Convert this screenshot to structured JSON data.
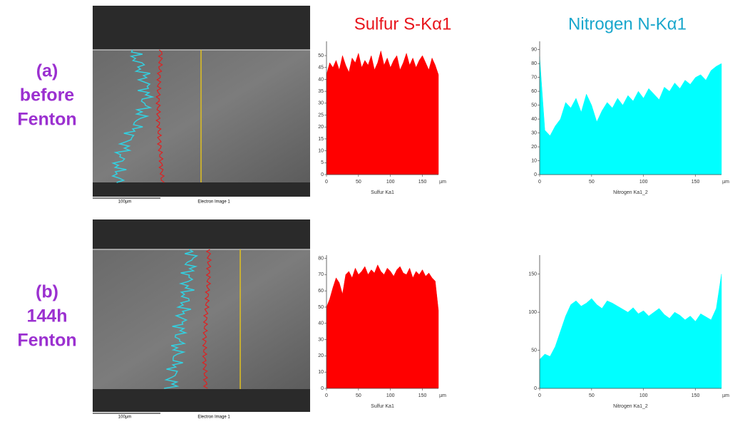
{
  "row_labels": [
    [
      "(a)",
      "before",
      "Fenton"
    ],
    [
      "(b)",
      "144h",
      "Fenton"
    ]
  ],
  "column_titles": [
    {
      "text": "Sulfur S-Kα1",
      "color": "#e8141c"
    },
    {
      "text": "Nitrogen N-Kα1",
      "color": "#1aa7cc"
    }
  ],
  "images": [
    {
      "scale_bar": "100µm",
      "caption": "Electron Image 1"
    },
    {
      "scale_bar": "100µm",
      "caption": "Electron Image 1"
    }
  ],
  "chart_data": [
    {
      "type": "area",
      "x": [
        0,
        5,
        10,
        15,
        20,
        25,
        30,
        35,
        40,
        45,
        50,
        55,
        60,
        65,
        70,
        75,
        80,
        85,
        90,
        95,
        100,
        105,
        110,
        115,
        120,
        125,
        130,
        135,
        140,
        145,
        150,
        155,
        160,
        165,
        170,
        175
      ],
      "series": [
        {
          "name": "Sulfur Ka1",
          "color": "#ff0000",
          "values": [
            42,
            47,
            45,
            48,
            44,
            50,
            46,
            43,
            49,
            47,
            51,
            45,
            48,
            46,
            50,
            44,
            47,
            52,
            46,
            49,
            45,
            48,
            50,
            44,
            47,
            51,
            46,
            49,
            45,
            48,
            50,
            47,
            44,
            49,
            46,
            42
          ]
        }
      ],
      "xlim": [
        0,
        175
      ],
      "xticks": [
        0,
        50,
        100,
        150
      ],
      "ylim": [
        0,
        56
      ],
      "yticks": [
        0,
        5,
        10,
        15,
        20,
        25,
        30,
        35,
        40,
        45,
        50
      ],
      "x_label": "µm"
    },
    {
      "type": "area",
      "x": [
        0,
        5,
        10,
        15,
        20,
        25,
        30,
        35,
        40,
        45,
        50,
        55,
        60,
        65,
        70,
        75,
        80,
        85,
        90,
        95,
        100,
        105,
        110,
        115,
        120,
        125,
        130,
        135,
        140,
        145,
        150,
        155,
        160,
        165,
        170,
        175
      ],
      "series": [
        {
          "name": "Nitrogen Ka1_2",
          "color": "#00ffff",
          "values": [
            85,
            32,
            28,
            35,
            40,
            52,
            48,
            55,
            45,
            58,
            50,
            38,
            46,
            52,
            48,
            55,
            50,
            57,
            53,
            60,
            55,
            62,
            58,
            54,
            63,
            60,
            66,
            62,
            68,
            65,
            70,
            72,
            68,
            75,
            78,
            80
          ]
        }
      ],
      "xlim": [
        0,
        175
      ],
      "xticks": [
        0,
        50,
        100,
        150
      ],
      "ylim": [
        0,
        96
      ],
      "yticks": [
        0,
        10,
        20,
        30,
        40,
        50,
        60,
        70,
        80,
        90
      ],
      "x_label": "µm"
    },
    {
      "type": "area",
      "x": [
        0,
        5,
        10,
        15,
        20,
        25,
        30,
        35,
        40,
        45,
        50,
        55,
        60,
        65,
        70,
        75,
        80,
        85,
        90,
        95,
        100,
        105,
        110,
        115,
        120,
        125,
        130,
        135,
        140,
        145,
        150,
        155,
        160,
        165,
        170,
        175
      ],
      "series": [
        {
          "name": "Sulfur Ka1",
          "color": "#ff0000",
          "values": [
            50,
            55,
            62,
            68,
            65,
            58,
            70,
            72,
            68,
            74,
            70,
            72,
            75,
            70,
            73,
            71,
            76,
            72,
            70,
            74,
            72,
            69,
            73,
            75,
            71,
            70,
            74,
            68,
            72,
            70,
            73,
            69,
            71,
            68,
            66,
            48
          ]
        }
      ],
      "xlim": [
        0,
        175
      ],
      "xticks": [
        0,
        50,
        100,
        150
      ],
      "ylim": [
        0,
        82
      ],
      "yticks": [
        0,
        10,
        20,
        30,
        40,
        50,
        60,
        70,
        80
      ],
      "x_label": "µm"
    },
    {
      "type": "area",
      "x": [
        0,
        5,
        10,
        15,
        20,
        25,
        30,
        35,
        40,
        45,
        50,
        55,
        60,
        65,
        70,
        75,
        80,
        85,
        90,
        95,
        100,
        105,
        110,
        115,
        120,
        125,
        130,
        135,
        140,
        145,
        150,
        155,
        160,
        165,
        170,
        175
      ],
      "series": [
        {
          "name": "Nitrogen Ka1_2",
          "color": "#00ffff",
          "values": [
            38,
            45,
            42,
            55,
            75,
            95,
            110,
            115,
            108,
            112,
            118,
            110,
            105,
            115,
            112,
            108,
            104,
            100,
            106,
            98,
            102,
            95,
            100,
            105,
            97,
            92,
            100,
            96,
            90,
            95,
            88,
            98,
            94,
            90,
            105,
            150
          ]
        }
      ],
      "xlim": [
        0,
        175
      ],
      "xticks": [
        0,
        50,
        100,
        150
      ],
      "ylim": [
        0,
        175
      ],
      "yticks": [
        0,
        50,
        100,
        150
      ],
      "x_label": "µm"
    }
  ]
}
